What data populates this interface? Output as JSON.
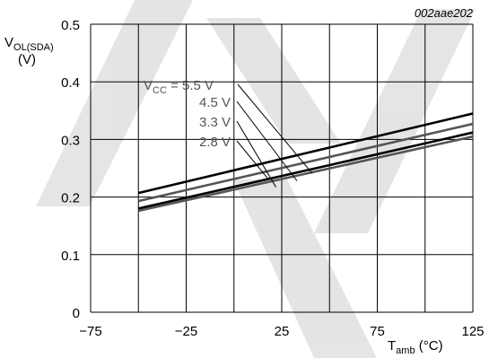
{
  "chart_data": {
    "type": "line",
    "figure_code": "002aae202",
    "ylabel_main": "V",
    "ylabel_sub": "OL(SDA)",
    "ylabel_unit": "(V)",
    "xlabel_main": "T",
    "xlabel_sub": "amb",
    "xlabel_unit": " (°C)",
    "xlim": [
      -75,
      125
    ],
    "ylim": [
      0,
      0.5
    ],
    "x_ticks": [
      -75,
      -25,
      25,
      75,
      125
    ],
    "x_tick_labels": [
      "−75",
      "−25",
      "25",
      "75",
      "125"
    ],
    "x_grid": [
      -75,
      -50,
      -25,
      0,
      25,
      50,
      75,
      100,
      125
    ],
    "y_ticks": [
      0,
      0.1,
      0.2,
      0.3,
      0.4,
      0.5
    ],
    "y_tick_labels": [
      "0",
      "0.1",
      "0.2",
      "0.3",
      "0.4",
      "0.5"
    ],
    "grid": true,
    "series": [
      {
        "name": "5.5 V",
        "x": [
          -50,
          125
        ],
        "y": [
          0.207,
          0.345
        ],
        "color": "#000000"
      },
      {
        "name": "4.5 V",
        "x": [
          -50,
          125
        ],
        "y": [
          0.193,
          0.327
        ],
        "color": "#555555"
      },
      {
        "name": "3.3 V",
        "x": [
          -50,
          125
        ],
        "y": [
          0.18,
          0.312
        ],
        "color": "#000000"
      },
      {
        "name": "2.8 V",
        "x": [
          -50,
          125
        ],
        "y": [
          0.176,
          0.305
        ],
        "color": "#555555"
      }
    ],
    "annotation_prefix": "V",
    "annotation_sub": "CC",
    "annotation_eq": " = ",
    "annotation_labels": [
      "5.5 V",
      "4.5 V",
      "3.3 V",
      "2.8 V"
    ],
    "annotation_targets": [
      [
        41,
        0.241
      ],
      [
        33,
        0.228
      ],
      [
        22,
        0.217
      ],
      [
        18,
        0.231
      ]
    ]
  }
}
